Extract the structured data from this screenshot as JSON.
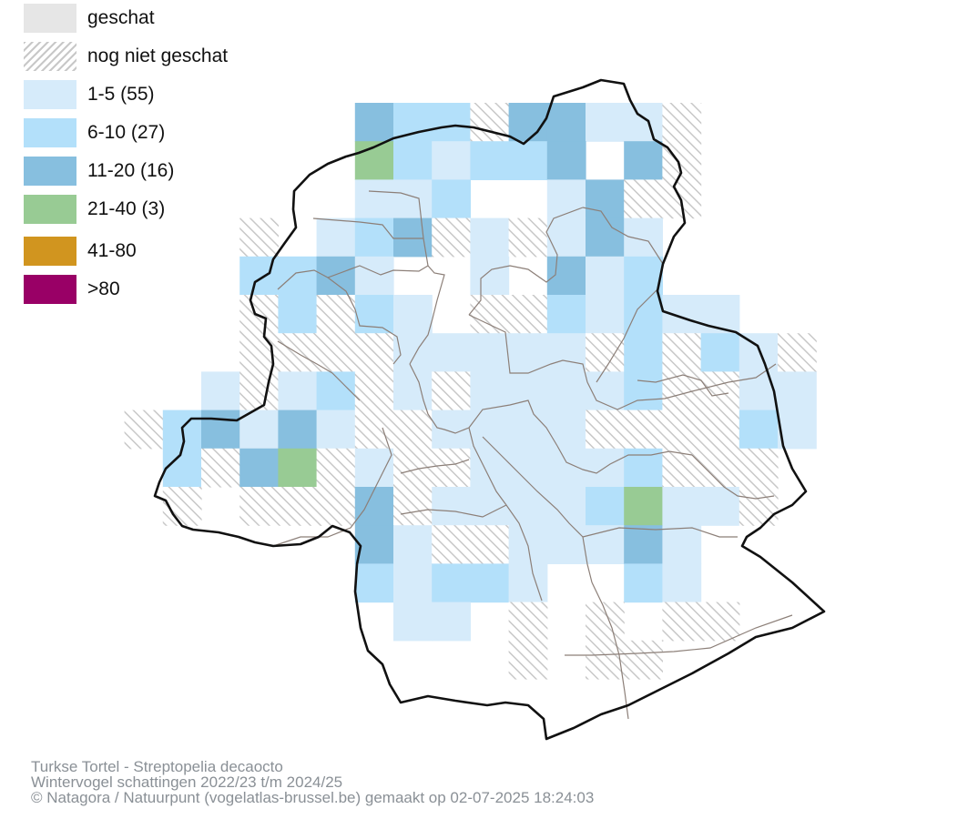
{
  "legend": {
    "items": [
      {
        "label": "geschat",
        "color": "#e6e6e6",
        "pattern": "none"
      },
      {
        "label": "nog niet geschat",
        "color": "#ffffff",
        "pattern": "hatch"
      },
      {
        "label": "1-5 (55)",
        "color": "#d6ebfa",
        "pattern": "none"
      },
      {
        "label": "6-10 (27)",
        "color": "#b3e0fa",
        "pattern": "none"
      },
      {
        "label": "11-20 (16)",
        "color": "#87bfdf",
        "pattern": "none"
      },
      {
        "label": "21-40 (3)",
        "color": "#98cb94",
        "pattern": "none"
      },
      {
        "label": "41-80",
        "color": "#d1951f",
        "pattern": "none"
      },
      {
        "label": ">80",
        "color": "#990066",
        "pattern": "none"
      }
    ]
  },
  "caption": {
    "species": "Turkse Tortel - Streptopelia decaocto",
    "period": "Wintervogel schattingen 2022/23 t/m 2024/25",
    "credit": "© Natagora / Natuurpunt (vogelatlas-brussel.be) gemaakt op 02-07-2025 18:24:03"
  },
  "colors": {
    "hatch": "#c8c8c8",
    "boundary": "#111111",
    "municipal_lines": "#8c7f78",
    "text": "#111111",
    "caption_text": "#8a9096"
  }
}
